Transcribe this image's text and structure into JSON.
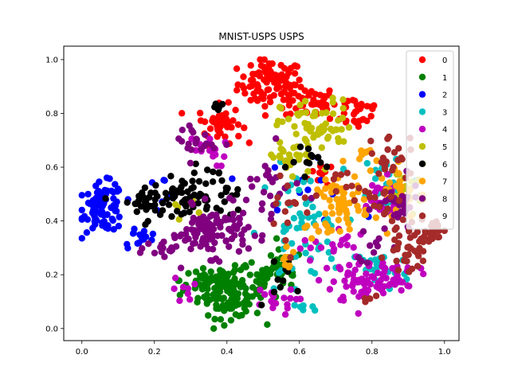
{
  "chart_data": {
    "type": "scatter",
    "title": "MNIST-USPS USPS",
    "xlabel": "",
    "ylabel": "",
    "xlim": [
      -0.05,
      1.04
    ],
    "ylim": [
      -0.045,
      1.05
    ],
    "xticks": [
      "0.0",
      "0.2",
      "0.4",
      "0.6",
      "0.8",
      "1.0"
    ],
    "yticks": [
      "0.0",
      "0.2",
      "0.4",
      "0.6",
      "0.8",
      "1.0"
    ],
    "xtick_values": [
      0,
      0.2,
      0.4,
      0.6,
      0.8,
      1.0
    ],
    "ytick_values": [
      0,
      0.2,
      0.4,
      0.6,
      0.8,
      1.0
    ],
    "grid": false,
    "legend_position": "top-right",
    "series": [
      {
        "name": "0",
        "color": "#ff0000",
        "clusters": [
          {
            "cx": 0.52,
            "cy": 0.91,
            "sx": 0.045,
            "sy": 0.045,
            "n": 90
          },
          {
            "cx": 0.63,
            "cy": 0.84,
            "sx": 0.035,
            "sy": 0.03,
            "n": 40
          },
          {
            "cx": 0.76,
            "cy": 0.81,
            "sx": 0.035,
            "sy": 0.035,
            "n": 30
          },
          {
            "cx": 0.38,
            "cy": 0.76,
            "sx": 0.03,
            "sy": 0.035,
            "n": 45
          },
          {
            "cx": 0.66,
            "cy": 0.58,
            "sx": 0.025,
            "sy": 0.03,
            "n": 12
          }
        ]
      },
      {
        "name": "1",
        "color": "#008000",
        "clusters": [
          {
            "cx": 0.41,
            "cy": 0.13,
            "sx": 0.045,
            "sy": 0.045,
            "n": 110
          },
          {
            "cx": 0.35,
            "cy": 0.18,
            "sx": 0.04,
            "sy": 0.03,
            "n": 40
          },
          {
            "cx": 0.55,
            "cy": 0.22,
            "sx": 0.03,
            "sy": 0.035,
            "n": 25
          },
          {
            "cx": 0.48,
            "cy": 0.17,
            "sx": 0.025,
            "sy": 0.04,
            "n": 20
          }
        ]
      },
      {
        "name": "2",
        "color": "#0000ff",
        "clusters": [
          {
            "cx": 0.06,
            "cy": 0.45,
            "sx": 0.028,
            "sy": 0.045,
            "n": 90
          },
          {
            "cx": 0.16,
            "cy": 0.34,
            "sx": 0.025,
            "sy": 0.02,
            "n": 15
          },
          {
            "cx": 0.22,
            "cy": 0.52,
            "sx": 0.02,
            "sy": 0.02,
            "n": 6
          },
          {
            "cx": 0.6,
            "cy": 0.55,
            "sx": 0.08,
            "sy": 0.08,
            "n": 12
          }
        ]
      },
      {
        "name": "3",
        "color": "#00bfbf",
        "clusters": [
          {
            "cx": 0.6,
            "cy": 0.35,
            "sx": 0.06,
            "sy": 0.12,
            "n": 60
          },
          {
            "cx": 0.82,
            "cy": 0.22,
            "sx": 0.04,
            "sy": 0.04,
            "n": 25
          },
          {
            "cx": 0.85,
            "cy": 0.55,
            "sx": 0.04,
            "sy": 0.06,
            "n": 20
          },
          {
            "cx": 0.6,
            "cy": 0.08,
            "sx": 0.02,
            "sy": 0.02,
            "n": 5
          }
        ]
      },
      {
        "name": "4",
        "color": "#bf00bf",
        "clusters": [
          {
            "cx": 0.77,
            "cy": 0.17,
            "sx": 0.04,
            "sy": 0.04,
            "n": 50
          },
          {
            "cx": 0.87,
            "cy": 0.2,
            "sx": 0.03,
            "sy": 0.03,
            "n": 30
          },
          {
            "cx": 0.82,
            "cy": 0.48,
            "sx": 0.035,
            "sy": 0.04,
            "n": 30
          },
          {
            "cx": 0.52,
            "cy": 0.1,
            "sx": 0.035,
            "sy": 0.025,
            "n": 18
          },
          {
            "cx": 0.34,
            "cy": 0.66,
            "sx": 0.03,
            "sy": 0.03,
            "n": 15
          },
          {
            "cx": 0.3,
            "cy": 0.14,
            "sx": 0.025,
            "sy": 0.025,
            "n": 8
          },
          {
            "cx": 0.68,
            "cy": 0.3,
            "sx": 0.04,
            "sy": 0.05,
            "n": 25
          }
        ]
      },
      {
        "name": "5",
        "color": "#bfbf00",
        "clusters": [
          {
            "cx": 0.65,
            "cy": 0.75,
            "sx": 0.05,
            "sy": 0.05,
            "n": 60
          },
          {
            "cx": 0.58,
            "cy": 0.63,
            "sx": 0.04,
            "sy": 0.04,
            "n": 25
          },
          {
            "cx": 0.9,
            "cy": 0.53,
            "sx": 0.025,
            "sy": 0.04,
            "n": 20
          },
          {
            "cx": 0.28,
            "cy": 0.45,
            "sx": 0.02,
            "sy": 0.02,
            "n": 6
          }
        ]
      },
      {
        "name": "6",
        "color": "#000000",
        "clusters": [
          {
            "cx": 0.27,
            "cy": 0.49,
            "sx": 0.035,
            "sy": 0.035,
            "n": 40
          },
          {
            "cx": 0.17,
            "cy": 0.47,
            "sx": 0.035,
            "sy": 0.035,
            "n": 30
          },
          {
            "cx": 0.37,
            "cy": 0.5,
            "sx": 0.035,
            "sy": 0.05,
            "n": 30
          },
          {
            "cx": 0.37,
            "cy": 0.82,
            "sx": 0.015,
            "sy": 0.01,
            "n": 5
          },
          {
            "cx": 0.65,
            "cy": 0.62,
            "sx": 0.04,
            "sy": 0.04,
            "n": 12
          },
          {
            "cx": 0.55,
            "cy": 0.2,
            "sx": 0.04,
            "sy": 0.04,
            "n": 10
          }
        ]
      },
      {
        "name": "7",
        "color": "#ffa500",
        "clusters": [
          {
            "cx": 0.72,
            "cy": 0.46,
            "sx": 0.035,
            "sy": 0.045,
            "n": 55
          },
          {
            "cx": 0.88,
            "cy": 0.5,
            "sx": 0.03,
            "sy": 0.05,
            "n": 25
          },
          {
            "cx": 0.78,
            "cy": 0.63,
            "sx": 0.025,
            "sy": 0.03,
            "n": 10
          },
          {
            "cx": 0.58,
            "cy": 0.25,
            "sx": 0.03,
            "sy": 0.04,
            "n": 8
          },
          {
            "cx": 0.64,
            "cy": 0.35,
            "sx": 0.02,
            "sy": 0.03,
            "n": 5
          }
        ]
      },
      {
        "name": "8",
        "color": "#800080",
        "clusters": [
          {
            "cx": 0.36,
            "cy": 0.36,
            "sx": 0.05,
            "sy": 0.045,
            "n": 100
          },
          {
            "cx": 0.24,
            "cy": 0.3,
            "sx": 0.03,
            "sy": 0.03,
            "n": 20
          },
          {
            "cx": 0.87,
            "cy": 0.44,
            "sx": 0.03,
            "sy": 0.05,
            "n": 30
          },
          {
            "cx": 0.31,
            "cy": 0.7,
            "sx": 0.03,
            "sy": 0.04,
            "n": 20
          },
          {
            "cx": 0.52,
            "cy": 0.5,
            "sx": 0.05,
            "sy": 0.08,
            "n": 25
          },
          {
            "cx": 0.8,
            "cy": 0.3,
            "sx": 0.03,
            "sy": 0.04,
            "n": 10
          }
        ]
      },
      {
        "name": "9",
        "color": "#a52a2a",
        "clusters": [
          {
            "cx": 0.9,
            "cy": 0.3,
            "sx": 0.03,
            "sy": 0.04,
            "n": 40
          },
          {
            "cx": 0.97,
            "cy": 0.37,
            "sx": 0.02,
            "sy": 0.02,
            "n": 20
          },
          {
            "cx": 0.85,
            "cy": 0.65,
            "sx": 0.03,
            "sy": 0.04,
            "n": 20
          },
          {
            "cx": 0.83,
            "cy": 0.5,
            "sx": 0.03,
            "sy": 0.05,
            "n": 15
          },
          {
            "cx": 0.57,
            "cy": 0.45,
            "sx": 0.04,
            "sy": 0.08,
            "n": 15
          },
          {
            "cx": 0.71,
            "cy": 0.54,
            "sx": 0.025,
            "sy": 0.03,
            "n": 10
          },
          {
            "cx": 0.78,
            "cy": 0.1,
            "sx": 0.015,
            "sy": 0.02,
            "n": 4
          }
        ]
      }
    ]
  }
}
